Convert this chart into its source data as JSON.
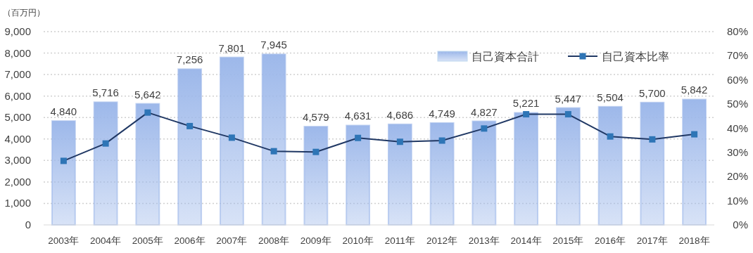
{
  "chart_data": {
    "type": "bar",
    "ylabel": "（百万円）",
    "categories": [
      "2003年",
      "2004年",
      "2005年",
      "2006年",
      "2007年",
      "2008年",
      "2009年",
      "2010年",
      "2011年",
      "2012年",
      "2013年",
      "2014年",
      "2015年",
      "2016年",
      "2017年",
      "2018年"
    ],
    "series": [
      {
        "name": "自己資本合計",
        "color": "#9db8ea",
        "values": [
          4840,
          5716,
          5642,
          7256,
          7801,
          7945,
          4579,
          4631,
          4686,
          4749,
          4827,
          5221,
          5447,
          5504,
          5700,
          5842
        ],
        "value_labels": [
          "4,840",
          "5,716",
          "5,642",
          "7,256",
          "7,801",
          "7,945",
          "4,579",
          "4,631",
          "4,686",
          "4,749",
          "4,827",
          "5,221",
          "5,447",
          "5,504",
          "5,700",
          "5,842"
        ]
      },
      {
        "name": "自己資本比率",
        "type": "line",
        "axis": "y2",
        "color": "#203864",
        "marker": "square",
        "values": [
          26.5,
          33.7,
          46.5,
          40.9,
          36.1,
          30.5,
          30.2,
          36.0,
          34.4,
          34.9,
          39.9,
          45.8,
          45.8,
          36.6,
          35.4,
          37.5
        ]
      }
    ],
    "ylim": [
      0,
      9000
    ],
    "yticks": [
      {
        "value": 0,
        "label": "0"
      },
      {
        "value": 1000,
        "label": "1,000"
      },
      {
        "value": 2000,
        "label": "2,000"
      },
      {
        "value": 3000,
        "label": "3,000"
      },
      {
        "value": 4000,
        "label": "4,000"
      },
      {
        "value": 5000,
        "label": "5,000"
      },
      {
        "value": 6000,
        "label": "6,000"
      },
      {
        "value": 7000,
        "label": "7,000"
      },
      {
        "value": 8000,
        "label": "8,000"
      },
      {
        "value": 9000,
        "label": "9,000"
      }
    ],
    "y2lim": [
      0,
      80
    ],
    "y2ticks": [
      {
        "value": 0,
        "label": "0%"
      },
      {
        "value": 10,
        "label": "10%"
      },
      {
        "value": 20,
        "label": "20%"
      },
      {
        "value": 30,
        "label": "30%"
      },
      {
        "value": 40,
        "label": "40%"
      },
      {
        "value": 50,
        "label": "50%"
      },
      {
        "value": 60,
        "label": "60%"
      },
      {
        "value": 70,
        "label": "70%"
      },
      {
        "value": 80,
        "label": "80%"
      }
    ],
    "grid": "y",
    "legend": "top right"
  }
}
